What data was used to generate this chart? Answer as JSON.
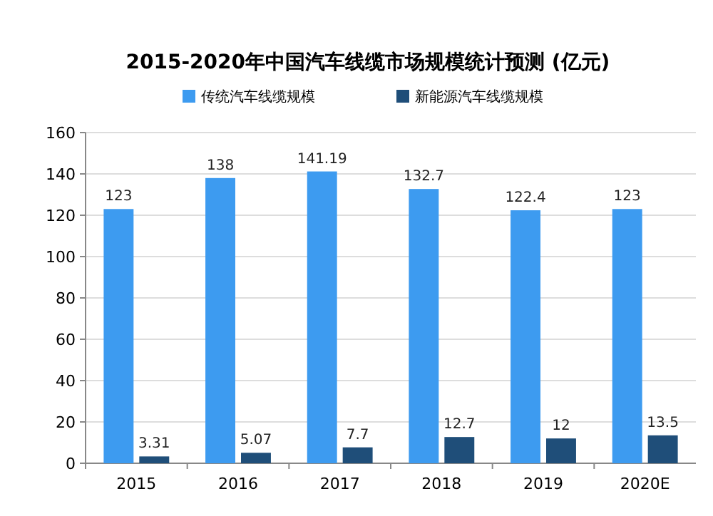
{
  "chart_data": {
    "type": "bar",
    "title": "2015-2020年中国汽车线缆市场规模统计预测 (亿元)",
    "categories": [
      "2015",
      "2016",
      "2017",
      "2018",
      "2019",
      "2020E"
    ],
    "series": [
      {
        "name": "传统汽车线缆规模",
        "color": "#3d9bf0",
        "values": [
          123,
          138,
          141.19,
          132.7,
          122.4,
          123
        ]
      },
      {
        "name": "新能源汽车线缆规模",
        "color": "#1f4e79",
        "values": [
          3.31,
          5.07,
          7.7,
          12.7,
          12,
          13.5
        ]
      }
    ],
    "ylim": [
      0,
      160
    ],
    "yticks": [
      0,
      20,
      40,
      60,
      80,
      100,
      120,
      140,
      160
    ],
    "grid": "y",
    "legend": "top",
    "data_labels": true
  }
}
